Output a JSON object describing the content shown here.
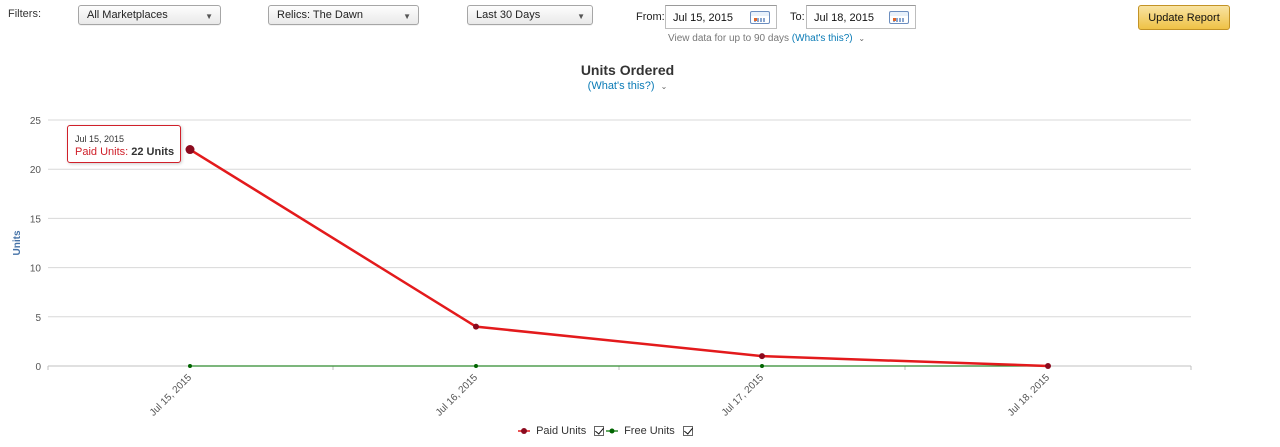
{
  "filters": {
    "label": "Filters:",
    "marketplace": "All Marketplaces",
    "title": "Relics: The Dawn",
    "period": "Last 30 Days",
    "from_label": "From:",
    "from_value": "Jul 15, 2015",
    "to_label": "To:",
    "to_value": "Jul 18, 2015",
    "hint_text": "View data for up to 90 days",
    "hint_link": "(What's this?)",
    "update_label": "Update Report"
  },
  "chart_header": {
    "title": "Units Ordered",
    "whats_this": "(What's this?)"
  },
  "tooltip": {
    "date": "Jul 15, 2015",
    "series": "Paid Units:",
    "value": "22 Units"
  },
  "legend": {
    "paid": "Paid Units",
    "free": "Free Units"
  },
  "colors": {
    "paid_line": "#e31a1c",
    "paid_marker": "#8b0a1e",
    "free_line": "#2e8b2e",
    "free_marker": "#006400",
    "grid": "#d8d8d8",
    "axis_title": "#4572a7"
  },
  "icons": [
    "calendar-icon",
    "chevron-down-icon",
    "checkbox-checked-icon"
  ],
  "chart_data": {
    "type": "line",
    "title": "Units Ordered",
    "x": [
      "Jul 15, 2015",
      "Jul 16, 2015",
      "Jul 17, 2015",
      "Jul 18, 2015"
    ],
    "ylabel": "Units",
    "xlabel": "",
    "ylim": [
      0,
      25
    ],
    "yticks": [
      0,
      5,
      10,
      15,
      20,
      25
    ],
    "grid": true,
    "legend_position": "bottom-center",
    "series": [
      {
        "name": "Paid Units",
        "values": [
          22,
          4,
          1,
          0
        ]
      },
      {
        "name": "Free Units",
        "values": [
          0,
          0,
          0,
          0
        ]
      }
    ]
  }
}
